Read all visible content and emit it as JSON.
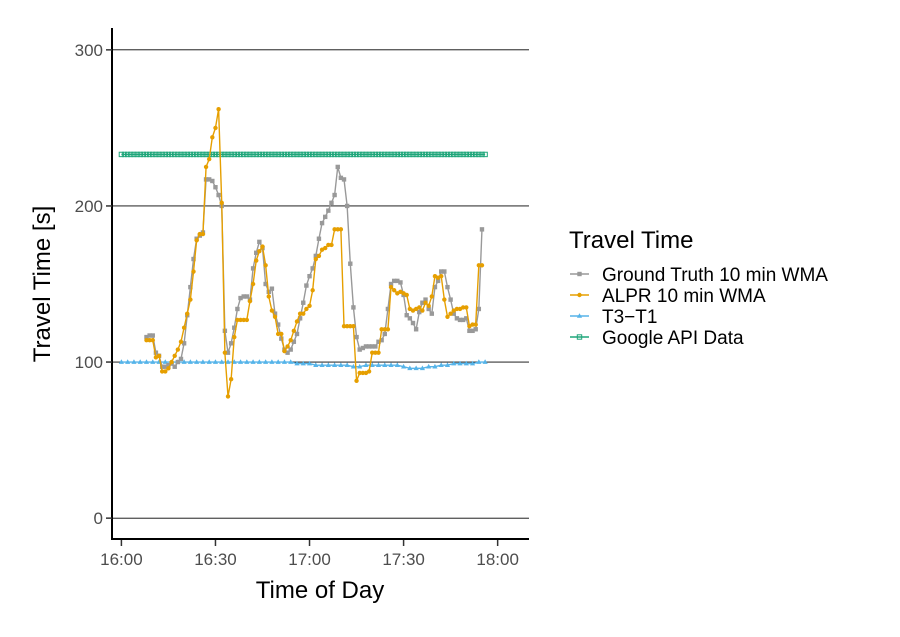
{
  "chart_data": {
    "type": "line",
    "title": "",
    "xlabel": "Time of Day",
    "ylabel": "Travel Time [s]",
    "xlim": [
      -3,
      130
    ],
    "ylim": [
      -14,
      314
    ],
    "x_ticks": [
      {
        "value": 0,
        "label": "16:00"
      },
      {
        "value": 30,
        "label": "16:30"
      },
      {
        "value": 60,
        "label": "17:00"
      },
      {
        "value": 90,
        "label": "17:30"
      },
      {
        "value": 120,
        "label": "18:00"
      }
    ],
    "y_ticks": [
      {
        "value": 0,
        "label": "0"
      },
      {
        "value": 100,
        "label": "100"
      },
      {
        "value": 200,
        "label": "200"
      },
      {
        "value": 300,
        "label": "300"
      }
    ],
    "grid": "horizontal-major",
    "legend": {
      "title": "Travel Time",
      "position": "right"
    },
    "series": [
      {
        "name": "Ground Truth 10 min WMA",
        "color": "#999999",
        "marker": "square",
        "points": [
          [
            8,
            116
          ],
          [
            9,
            117
          ],
          [
            10,
            117
          ],
          [
            11,
            106
          ],
          [
            12,
            104
          ],
          [
            13,
            97
          ],
          [
            14,
            97
          ],
          [
            15,
            98
          ],
          [
            16,
            99
          ],
          [
            17,
            97
          ],
          [
            18,
            100
          ],
          [
            19,
            102
          ],
          [
            20,
            112
          ],
          [
            21,
            130
          ],
          [
            22,
            148
          ],
          [
            23,
            166
          ],
          [
            24,
            179
          ],
          [
            25,
            181
          ],
          [
            26,
            183
          ],
          [
            27,
            217
          ],
          [
            28,
            217
          ],
          [
            29,
            216
          ],
          [
            30,
            212
          ],
          [
            31,
            207
          ],
          [
            32,
            200
          ],
          [
            33,
            120
          ],
          [
            34,
            106
          ],
          [
            35,
            112
          ],
          [
            36,
            122
          ],
          [
            37,
            134
          ],
          [
            38,
            141
          ],
          [
            39,
            142
          ],
          [
            40,
            142
          ],
          [
            41,
            140
          ],
          [
            42,
            160
          ],
          [
            43,
            170
          ],
          [
            44,
            177
          ],
          [
            45,
            173
          ],
          [
            46,
            150
          ],
          [
            47,
            145
          ],
          [
            48,
            147
          ],
          [
            49,
            131
          ],
          [
            50,
            124
          ],
          [
            51,
            115
          ],
          [
            52,
            108
          ],
          [
            53,
            106
          ],
          [
            54,
            108
          ],
          [
            55,
            113
          ],
          [
            56,
            118
          ],
          [
            57,
            128
          ],
          [
            58,
            138
          ],
          [
            59,
            149
          ],
          [
            60,
            155
          ],
          [
            61,
            160
          ],
          [
            62,
            168
          ],
          [
            63,
            179
          ],
          [
            64,
            189
          ],
          [
            65,
            193
          ],
          [
            66,
            197
          ],
          [
            67,
            202
          ],
          [
            68,
            207
          ],
          [
            69,
            225
          ],
          [
            70,
            218
          ],
          [
            71,
            217
          ],
          [
            72,
            200
          ],
          [
            73,
            163
          ],
          [
            74,
            135
          ],
          [
            75,
            116
          ],
          [
            76,
            108
          ],
          [
            77,
            109
          ],
          [
            78,
            110
          ],
          [
            79,
            110
          ],
          [
            80,
            110
          ],
          [
            81,
            110
          ],
          [
            82,
            113
          ],
          [
            83,
            114
          ],
          [
            84,
            118
          ],
          [
            85,
            134
          ],
          [
            86,
            150
          ],
          [
            87,
            152
          ],
          [
            88,
            152
          ],
          [
            89,
            151
          ],
          [
            90,
            143
          ],
          [
            91,
            130
          ],
          [
            92,
            128
          ],
          [
            93,
            125
          ],
          [
            94,
            121
          ],
          [
            95,
            132
          ],
          [
            96,
            138
          ],
          [
            97,
            140
          ],
          [
            98,
            134
          ],
          [
            99,
            131
          ],
          [
            100,
            148
          ],
          [
            101,
            152
          ],
          [
            102,
            158
          ],
          [
            103,
            158
          ],
          [
            104,
            148
          ],
          [
            105,
            140
          ],
          [
            106,
            131
          ],
          [
            107,
            128
          ],
          [
            108,
            127
          ],
          [
            109,
            127
          ],
          [
            110,
            128
          ],
          [
            111,
            120
          ],
          [
            112,
            120
          ],
          [
            113,
            121
          ],
          [
            114,
            134
          ],
          [
            115,
            185
          ]
        ]
      },
      {
        "name": "ALPR 10 min WMA",
        "color": "#E69F00",
        "marker": "circle",
        "points": [
          [
            8,
            114
          ],
          [
            9,
            114
          ],
          [
            10,
            114
          ],
          [
            11,
            103
          ],
          [
            12,
            104
          ],
          [
            13,
            94
          ],
          [
            14,
            94
          ],
          [
            15,
            96
          ],
          [
            16,
            100
          ],
          [
            17,
            104
          ],
          [
            18,
            108
          ],
          [
            19,
            113
          ],
          [
            20,
            122
          ],
          [
            21,
            131
          ],
          [
            22,
            140
          ],
          [
            23,
            158
          ],
          [
            24,
            178
          ],
          [
            25,
            182
          ],
          [
            26,
            182
          ],
          [
            27,
            225
          ],
          [
            28,
            230
          ],
          [
            29,
            244
          ],
          [
            30,
            250
          ],
          [
            31,
            262
          ],
          [
            32,
            202
          ],
          [
            33,
            106
          ],
          [
            34,
            78
          ],
          [
            35,
            89
          ],
          [
            36,
            116
          ],
          [
            37,
            127
          ],
          [
            38,
            127
          ],
          [
            39,
            127
          ],
          [
            40,
            127
          ],
          [
            41,
            139
          ],
          [
            42,
            150
          ],
          [
            43,
            165
          ],
          [
            44,
            171
          ],
          [
            45,
            174
          ],
          [
            46,
            162
          ],
          [
            47,
            142
          ],
          [
            48,
            133
          ],
          [
            49,
            129
          ],
          [
            50,
            118
          ],
          [
            51,
            118
          ],
          [
            52,
            107
          ],
          [
            53,
            110
          ],
          [
            54,
            114
          ],
          [
            55,
            120
          ],
          [
            56,
            126
          ],
          [
            57,
            131
          ],
          [
            58,
            131
          ],
          [
            59,
            134
          ],
          [
            60,
            136
          ],
          [
            61,
            146
          ],
          [
            62,
            166
          ],
          [
            63,
            168
          ],
          [
            64,
            172
          ],
          [
            65,
            173
          ],
          [
            66,
            175
          ],
          [
            67,
            175
          ],
          [
            68,
            185
          ],
          [
            69,
            185
          ],
          [
            70,
            185
          ],
          [
            71,
            123
          ],
          [
            72,
            123
          ],
          [
            73,
            123
          ],
          [
            74,
            123
          ],
          [
            75,
            88
          ],
          [
            76,
            93
          ],
          [
            77,
            93
          ],
          [
            78,
            93
          ],
          [
            79,
            94
          ],
          [
            80,
            106
          ],
          [
            81,
            106
          ],
          [
            82,
            106
          ],
          [
            83,
            121
          ],
          [
            84,
            121
          ],
          [
            85,
            121
          ],
          [
            86,
            148
          ],
          [
            87,
            146
          ],
          [
            88,
            144
          ],
          [
            89,
            145
          ],
          [
            90,
            144
          ],
          [
            91,
            143
          ],
          [
            92,
            134
          ],
          [
            93,
            133
          ],
          [
            94,
            134
          ],
          [
            95,
            135
          ],
          [
            96,
            133
          ],
          [
            97,
            138
          ],
          [
            98,
            136
          ],
          [
            99,
            142
          ],
          [
            100,
            155
          ],
          [
            101,
            154
          ],
          [
            102,
            155
          ],
          [
            103,
            140
          ],
          [
            104,
            129
          ],
          [
            105,
            131
          ],
          [
            106,
            133
          ],
          [
            107,
            134
          ],
          [
            108,
            134
          ],
          [
            109,
            135
          ],
          [
            110,
            135
          ],
          [
            111,
            123
          ],
          [
            112,
            124
          ],
          [
            113,
            124
          ],
          [
            114,
            162
          ],
          [
            115,
            162
          ]
        ]
      },
      {
        "name": "T3−T1",
        "color": "#56B4E9",
        "marker": "triangle",
        "points": [
          [
            0,
            100
          ],
          [
            2,
            100
          ],
          [
            4,
            100
          ],
          [
            6,
            100
          ],
          [
            8,
            100
          ],
          [
            10,
            100
          ],
          [
            12,
            100
          ],
          [
            14,
            100
          ],
          [
            16,
            100
          ],
          [
            18,
            100
          ],
          [
            20,
            100
          ],
          [
            22,
            100
          ],
          [
            24,
            100
          ],
          [
            26,
            100
          ],
          [
            28,
            100
          ],
          [
            30,
            100
          ],
          [
            32,
            100
          ],
          [
            34,
            100
          ],
          [
            36,
            100
          ],
          [
            38,
            100
          ],
          [
            40,
            100
          ],
          [
            42,
            100
          ],
          [
            44,
            100
          ],
          [
            46,
            100
          ],
          [
            48,
            100
          ],
          [
            50,
            100
          ],
          [
            52,
            100
          ],
          [
            54,
            100
          ],
          [
            56,
            99
          ],
          [
            58,
            99
          ],
          [
            60,
            99
          ],
          [
            62,
            98
          ],
          [
            64,
            98
          ],
          [
            66,
            98
          ],
          [
            68,
            98
          ],
          [
            70,
            98
          ],
          [
            72,
            98
          ],
          [
            74,
            97
          ],
          [
            76,
            97
          ],
          [
            78,
            98
          ],
          [
            80,
            98
          ],
          [
            82,
            98
          ],
          [
            84,
            98
          ],
          [
            86,
            98
          ],
          [
            88,
            98
          ],
          [
            90,
            97
          ],
          [
            92,
            96
          ],
          [
            94,
            96
          ],
          [
            96,
            96
          ],
          [
            98,
            97
          ],
          [
            100,
            97
          ],
          [
            102,
            98
          ],
          [
            104,
            98
          ],
          [
            106,
            99
          ],
          [
            108,
            99
          ],
          [
            110,
            99
          ],
          [
            112,
            99
          ],
          [
            114,
            100
          ],
          [
            116,
            100
          ]
        ]
      },
      {
        "name": "Google API Data",
        "color": "#1FA67A",
        "marker": "square-open",
        "points": [
          [
            0,
            233
          ],
          [
            116,
            233
          ]
        ]
      }
    ]
  }
}
